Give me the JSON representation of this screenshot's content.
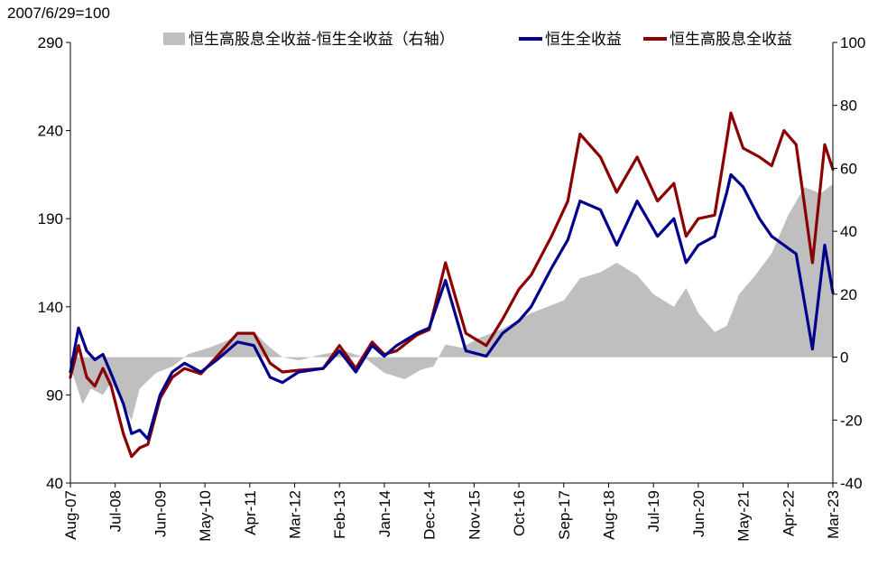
{
  "chart_data": {
    "type": "line",
    "title": "",
    "base_label": "2007/6/29=100",
    "left_axis": {
      "ylim": [
        40,
        290
      ],
      "ticks": [
        40,
        90,
        140,
        190,
        240,
        290
      ]
    },
    "right_axis": {
      "ylim": [
        -40,
        100
      ],
      "ticks": [
        -40,
        -20,
        0,
        20,
        40,
        60,
        80,
        100
      ]
    },
    "x_range": [
      "2007-08",
      "2023-03"
    ],
    "x_ticks": [
      "Aug-07",
      "Jul-08",
      "Jun-09",
      "May-10",
      "Apr-11",
      "Mar-12",
      "Feb-13",
      "Jan-14",
      "Dec-14",
      "Nov-15",
      "Oct-16",
      "Sep-17",
      "Aug-18",
      "Jul-19",
      "Jun-20",
      "May-21",
      "Apr-22",
      "Mar-23"
    ],
    "series": [
      {
        "name": "恒生高股息全收益-恒生全收益（右轴）",
        "type": "area",
        "axis": "right",
        "color": "#bfbfbf",
        "points": [
          [
            "2007-08",
            -3
          ],
          [
            "2007-11",
            -15
          ],
          [
            "2008-01",
            -10
          ],
          [
            "2008-04",
            -12
          ],
          [
            "2008-06",
            -8
          ],
          [
            "2008-09",
            -15
          ],
          [
            "2008-11",
            -20
          ],
          [
            "2009-01",
            -10
          ],
          [
            "2009-05",
            -5
          ],
          [
            "2009-09",
            -3
          ],
          [
            "2010-01",
            1
          ],
          [
            "2010-06",
            3
          ],
          [
            "2010-10",
            5
          ],
          [
            "2011-01",
            7
          ],
          [
            "2011-05",
            8
          ],
          [
            "2011-09",
            3
          ],
          [
            "2011-12",
            0
          ],
          [
            "2012-04",
            -1
          ],
          [
            "2012-10",
            1
          ],
          [
            "2013-03",
            2
          ],
          [
            "2013-08",
            0
          ],
          [
            "2014-01",
            -5
          ],
          [
            "2014-06",
            -7
          ],
          [
            "2014-10",
            -4
          ],
          [
            "2015-01",
            -3
          ],
          [
            "2015-04",
            4
          ],
          [
            "2015-08",
            3
          ],
          [
            "2015-12",
            6
          ],
          [
            "2016-06",
            9
          ],
          [
            "2017-01",
            14
          ],
          [
            "2017-05",
            16
          ],
          [
            "2017-09",
            18
          ],
          [
            "2018-01",
            25
          ],
          [
            "2018-06",
            27
          ],
          [
            "2018-10",
            30
          ],
          [
            "2019-03",
            26
          ],
          [
            "2019-07",
            20
          ],
          [
            "2019-12",
            16
          ],
          [
            "2020-03",
            22
          ],
          [
            "2020-06",
            14
          ],
          [
            "2020-10",
            8
          ],
          [
            "2021-01",
            10
          ],
          [
            "2021-04",
            20
          ],
          [
            "2021-08",
            26
          ],
          [
            "2021-12",
            33
          ],
          [
            "2022-04",
            45
          ],
          [
            "2022-08",
            54
          ],
          [
            "2022-12",
            52
          ],
          [
            "2023-03",
            55
          ]
        ]
      },
      {
        "name": "恒生全收益",
        "type": "line",
        "axis": "left",
        "color": "#00008b",
        "points": [
          [
            "2007-08",
            103
          ],
          [
            "2007-10",
            128
          ],
          [
            "2007-12",
            115
          ],
          [
            "2008-02",
            110
          ],
          [
            "2008-04",
            113
          ],
          [
            "2008-06",
            102
          ],
          [
            "2008-09",
            85
          ],
          [
            "2008-11",
            68
          ],
          [
            "2009-01",
            70
          ],
          [
            "2009-03",
            65
          ],
          [
            "2009-06",
            90
          ],
          [
            "2009-09",
            103
          ],
          [
            "2009-12",
            108
          ],
          [
            "2010-04",
            103
          ],
          [
            "2010-08",
            110
          ],
          [
            "2011-01",
            120
          ],
          [
            "2011-05",
            118
          ],
          [
            "2011-09",
            100
          ],
          [
            "2011-12",
            97
          ],
          [
            "2012-04",
            103
          ],
          [
            "2012-10",
            105
          ],
          [
            "2013-02",
            115
          ],
          [
            "2013-06",
            103
          ],
          [
            "2013-10",
            118
          ],
          [
            "2014-01",
            112
          ],
          [
            "2014-04",
            118
          ],
          [
            "2014-09",
            125
          ],
          [
            "2014-12",
            128
          ],
          [
            "2015-04",
            155
          ],
          [
            "2015-09",
            115
          ],
          [
            "2016-02",
            112
          ],
          [
            "2016-06",
            125
          ],
          [
            "2016-10",
            132
          ],
          [
            "2017-01",
            140
          ],
          [
            "2017-06",
            162
          ],
          [
            "2017-10",
            178
          ],
          [
            "2018-01",
            200
          ],
          [
            "2018-06",
            195
          ],
          [
            "2018-10",
            175
          ],
          [
            "2019-03",
            200
          ],
          [
            "2019-08",
            180
          ],
          [
            "2019-12",
            190
          ],
          [
            "2020-03",
            165
          ],
          [
            "2020-06",
            175
          ],
          [
            "2020-10",
            180
          ],
          [
            "2021-01",
            205
          ],
          [
            "2021-02",
            215
          ],
          [
            "2021-05",
            208
          ],
          [
            "2021-09",
            190
          ],
          [
            "2021-12",
            180
          ],
          [
            "2022-03",
            175
          ],
          [
            "2022-06",
            170
          ],
          [
            "2022-10",
            116
          ],
          [
            "2023-01",
            175
          ],
          [
            "2023-03",
            148
          ]
        ]
      },
      {
        "name": "恒生高股息全收益",
        "type": "line",
        "axis": "left",
        "color": "#8b0000",
        "points": [
          [
            "2007-08",
            100
          ],
          [
            "2007-10",
            118
          ],
          [
            "2007-12",
            100
          ],
          [
            "2008-02",
            95
          ],
          [
            "2008-04",
            105
          ],
          [
            "2008-06",
            95
          ],
          [
            "2008-09",
            68
          ],
          [
            "2008-11",
            55
          ],
          [
            "2009-01",
            60
          ],
          [
            "2009-03",
            62
          ],
          [
            "2009-06",
            88
          ],
          [
            "2009-09",
            100
          ],
          [
            "2009-12",
            105
          ],
          [
            "2010-04",
            102
          ],
          [
            "2010-08",
            112
          ],
          [
            "2011-01",
            125
          ],
          [
            "2011-05",
            125
          ],
          [
            "2011-09",
            108
          ],
          [
            "2011-12",
            103
          ],
          [
            "2012-04",
            104
          ],
          [
            "2012-10",
            105
          ],
          [
            "2013-02",
            118
          ],
          [
            "2013-06",
            105
          ],
          [
            "2013-10",
            120
          ],
          [
            "2014-01",
            113
          ],
          [
            "2014-04",
            115
          ],
          [
            "2014-09",
            124
          ],
          [
            "2014-12",
            127
          ],
          [
            "2015-04",
            165
          ],
          [
            "2015-09",
            125
          ],
          [
            "2016-02",
            118
          ],
          [
            "2016-06",
            133
          ],
          [
            "2016-10",
            150
          ],
          [
            "2017-01",
            158
          ],
          [
            "2017-06",
            180
          ],
          [
            "2017-10",
            200
          ],
          [
            "2018-01",
            238
          ],
          [
            "2018-06",
            225
          ],
          [
            "2018-10",
            205
          ],
          [
            "2019-03",
            225
          ],
          [
            "2019-08",
            200
          ],
          [
            "2019-12",
            210
          ],
          [
            "2020-03",
            180
          ],
          [
            "2020-06",
            190
          ],
          [
            "2020-10",
            192
          ],
          [
            "2021-01",
            235
          ],
          [
            "2021-02",
            250
          ],
          [
            "2021-05",
            230
          ],
          [
            "2021-09",
            225
          ],
          [
            "2021-12",
            220
          ],
          [
            "2022-03",
            240
          ],
          [
            "2022-06",
            232
          ],
          [
            "2022-10",
            165
          ],
          [
            "2023-01",
            232
          ],
          [
            "2023-03",
            218
          ]
        ]
      }
    ]
  }
}
